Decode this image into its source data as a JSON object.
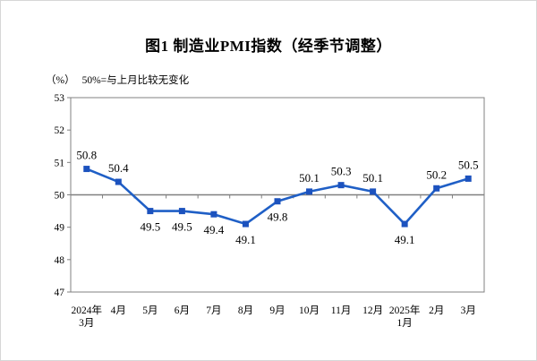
{
  "title": "图1  制造业PMI指数（经季节调整）",
  "axis_note": {
    "unit": "（%）",
    "note": "50%=与上月比较无变化"
  },
  "chart_data": {
    "type": "line",
    "title": "图1  制造业PMI指数（经季节调整）",
    "categories": [
      "2024年\n3月",
      "4月",
      "5月",
      "6月",
      "7月",
      "8月",
      "9月",
      "10月",
      "11月",
      "12月",
      "2025年\n1月",
      "2月",
      "3月"
    ],
    "values": [
      50.8,
      50.4,
      49.5,
      49.5,
      49.4,
      49.1,
      49.8,
      50.1,
      50.3,
      50.1,
      49.1,
      50.2,
      50.5
    ],
    "ylabel": "（%）",
    "annotation": "50%=与上月比较无变化",
    "ylim": [
      47,
      53
    ],
    "ytick_step": 1,
    "yticks": [
      47,
      48,
      49,
      50,
      51,
      52,
      53
    ],
    "reference_line": 50,
    "grid": false,
    "legend_position": "none",
    "line_color": "#1F5FC6",
    "marker_color": "#1C52BE",
    "axis_color": "#808080",
    "label_color": "#000000"
  }
}
